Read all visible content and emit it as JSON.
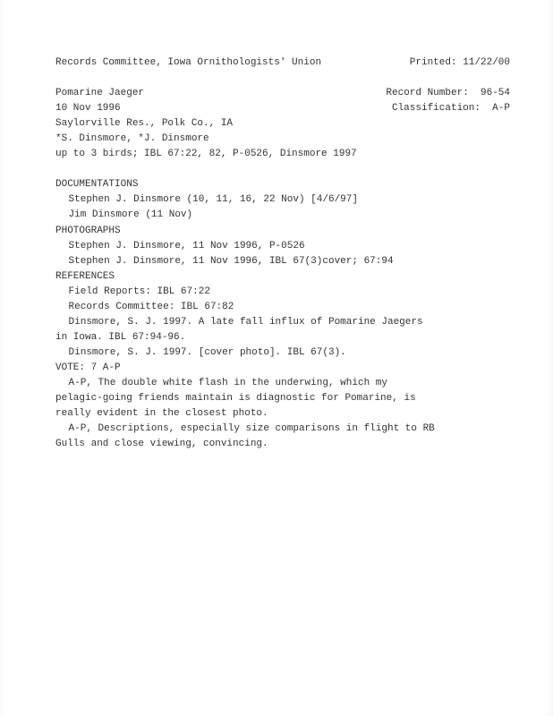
{
  "header": {
    "org": "Records Committee, Iowa Ornithologists' Union",
    "printed_label": "Printed: 11/22/00"
  },
  "record": {
    "species": "Pomarine Jaeger",
    "record_number_label": "Record Number:  96-54",
    "date": "10 Nov 1996",
    "classification_label": "Classification:  A-P",
    "location": "Saylorville Res., Polk Co., IA",
    "observers": "*S. Dinsmore, *J. Dinsmore",
    "summary": "up to 3 birds; IBL 67:22, 82, P-0526, Dinsmore 1997"
  },
  "documentations": {
    "heading": "DOCUMENTATIONS",
    "items": [
      "Stephen J. Dinsmore (10, 11, 16, 22 Nov) [4/6/97]",
      "Jim Dinsmore (11 Nov)"
    ]
  },
  "photographs": {
    "heading": "PHOTOGRAPHS",
    "items": [
      "Stephen J. Dinsmore, 11 Nov 1996, P-0526",
      "Stephen J. Dinsmore, 11 Nov 1996, IBL 67(3)cover; 67:94"
    ]
  },
  "references": {
    "heading": "REFERENCES",
    "items": [
      "Field Reports: IBL 67:22",
      "Records Committee: IBL 67:82",
      "Dinsmore, S. J. 1997. A late fall influx of Pomarine Jaegers",
      "in Iowa. IBL 67:94-96.",
      "Dinsmore, S. J. 1997. [cover photo]. IBL 67(3)."
    ],
    "unindent_idx": 3
  },
  "vote": {
    "heading": "VOTE: 7 A-P",
    "lines": [
      "A-P, The double white flash in the underwing, which my",
      "pelagic-going friends maintain is diagnostic for Pomarine, is",
      "really evident in the closest photo.",
      "A-P, Descriptions, especially size comparisons in flight to RB",
      "Gulls and close viewing, convincing."
    ],
    "indent_idx": [
      0,
      3
    ]
  }
}
